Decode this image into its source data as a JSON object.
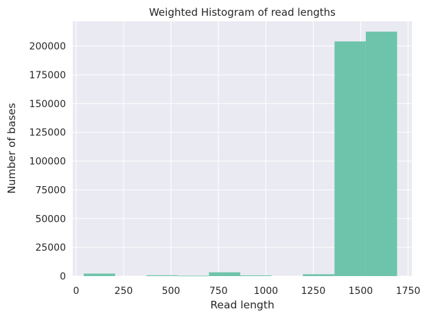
{
  "chart_data": {
    "type": "bar",
    "title": "Weighted Histogram of read lengths",
    "xlabel": "Read length",
    "ylabel": "Number of bases",
    "xlim": [
      -18,
      1770
    ],
    "ylim": [
      0,
      221500
    ],
    "xticks": [
      0,
      250,
      500,
      750,
      1000,
      1250,
      1500,
      1750
    ],
    "yticks": [
      0,
      25000,
      50000,
      75000,
      100000,
      125000,
      150000,
      175000,
      200000
    ],
    "grid": true,
    "bins": [
      {
        "x0": 40,
        "x1": 205,
        "value": 2200
      },
      {
        "x0": 205,
        "x1": 370,
        "value": 0
      },
      {
        "x0": 370,
        "x1": 535,
        "value": 700
      },
      {
        "x0": 535,
        "x1": 700,
        "value": 300
      },
      {
        "x0": 700,
        "x1": 865,
        "value": 3300
      },
      {
        "x0": 865,
        "x1": 1030,
        "value": 600
      },
      {
        "x0": 1030,
        "x1": 1195,
        "value": 0
      },
      {
        "x0": 1195,
        "x1": 1362,
        "value": 1600
      },
      {
        "x0": 1362,
        "x1": 1527,
        "value": 204000
      },
      {
        "x0": 1527,
        "x1": 1692,
        "value": 212500
      }
    ]
  },
  "colors": {
    "bar": "#66c2a5",
    "plot_background": "#eaeaf2",
    "grid": "#ffffff"
  }
}
